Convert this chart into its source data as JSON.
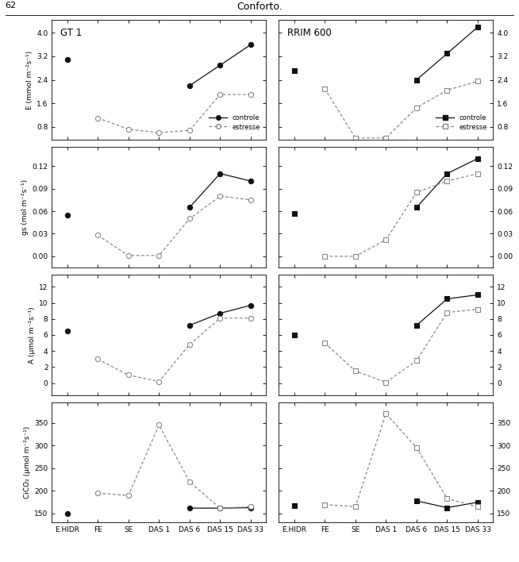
{
  "x_labels": [
    "E.HIDR",
    "FE",
    "SE",
    "DAS 1",
    "DAS 6",
    "DAS 15",
    "DAS 33"
  ],
  "x_positions": [
    0,
    1,
    2,
    3,
    4,
    5,
    6
  ],
  "cultivars": [
    "GT 1",
    "RRIM 600"
  ],
  "E": {
    "GT1": {
      "controle": [
        3.1,
        null,
        null,
        null,
        2.2,
        2.9,
        3.6
      ],
      "estresse": [
        null,
        1.1,
        0.72,
        0.6,
        0.68,
        1.9,
        1.9
      ]
    },
    "RRIM600": {
      "controle": [
        2.7,
        null,
        null,
        null,
        2.4,
        3.3,
        4.2
      ],
      "estresse": [
        null,
        2.1,
        0.42,
        0.42,
        1.45,
        2.05,
        2.35
      ]
    },
    "ylim": [
      0.35,
      4.45
    ],
    "yticks": [
      0.8,
      1.6,
      2.4,
      3.2,
      4.0
    ],
    "ylabel": "E (mmol m⁻²s⁻¹)"
  },
  "gs": {
    "GT1": {
      "controle": [
        0.055,
        null,
        null,
        null,
        0.065,
        0.11,
        0.1
      ],
      "estresse": [
        null,
        0.028,
        0.001,
        0.001,
        0.05,
        0.08,
        0.075
      ]
    },
    "RRIM600": {
      "controle": [
        0.057,
        null,
        null,
        null,
        0.065,
        0.11,
        0.13
      ],
      "estresse": [
        null,
        0.0,
        0.0,
        0.022,
        0.085,
        0.1,
        0.11
      ]
    },
    "ylim": [
      -0.015,
      0.145
    ],
    "yticks": [
      0.0,
      0.03,
      0.06,
      0.09,
      0.12
    ],
    "ylabel": "gs (mol m⁻²s⁻¹)"
  },
  "A": {
    "GT1": {
      "controle": [
        6.5,
        null,
        null,
        null,
        7.2,
        8.7,
        9.7
      ],
      "estresse": [
        null,
        3.0,
        1.0,
        0.2,
        4.8,
        8.1,
        8.1
      ]
    },
    "RRIM600": {
      "controle": [
        6.0,
        null,
        null,
        null,
        7.2,
        10.5,
        11.0
      ],
      "estresse": [
        null,
        5.0,
        1.5,
        0.1,
        2.8,
        8.8,
        9.2
      ]
    },
    "ylim": [
      -1.5,
      13.5
    ],
    "yticks": [
      0,
      2,
      4,
      6,
      8,
      10,
      12
    ],
    "ylabel": "A (μmol m⁻²s⁻¹)"
  },
  "CiCO2": {
    "GT1": {
      "controle": [
        150,
        null,
        null,
        null,
        162,
        162,
        163
      ],
      "estresse": [
        null,
        195,
        190,
        345,
        220,
        162,
        165
      ]
    },
    "RRIM600": {
      "controle": [
        168,
        null,
        null,
        null,
        178,
        163,
        175
      ],
      "estresse": [
        null,
        170,
        165,
        370,
        295,
        183,
        165
      ]
    },
    "ylim": [
      130,
      395
    ],
    "yticks": [
      150,
      200,
      250,
      300,
      350
    ],
    "ylabel": "CiCO₂ (μmol m⁻²s⁻¹)"
  },
  "controle_color": "#111111",
  "estresse_color": "#888888",
  "title": "Conforto.",
  "page_num": "62"
}
